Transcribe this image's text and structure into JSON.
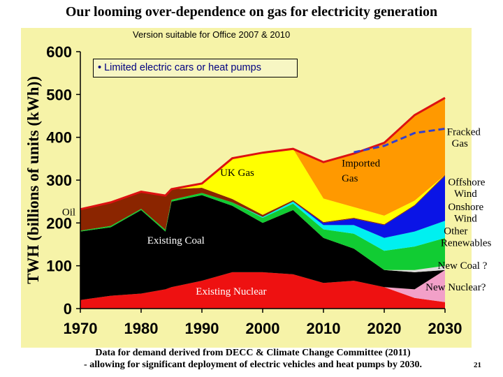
{
  "slide": {
    "title": "Our looming over-dependence on gas for electricity generation",
    "version": "Version suitable for Office 2007 & 2010",
    "note": "• Limited electric cars or heat pumps",
    "footer_line1": "Data for demand derived from DECC & Climate Change Committee (2011)",
    "footer_line2": "- allowing for significant deployment of electric vehicles and heat pumps by 2030.",
    "page_number": "21"
  },
  "chart_data": {
    "type": "area",
    "stacked": true,
    "ylabel": "TWH (billions of units (kWh))",
    "xlabel": "",
    "xlim": [
      1970,
      2030
    ],
    "ylim": [
      0,
      600
    ],
    "x_ticks": [
      1970,
      1980,
      1990,
      2000,
      2010,
      2020,
      2030
    ],
    "y_ticks": [
      0,
      100,
      200,
      300,
      400,
      500,
      600
    ],
    "x": [
      1970,
      1975,
      1980,
      1984,
      1985,
      1990,
      1995,
      2000,
      2005,
      2010,
      2015,
      2020,
      2025,
      2030
    ],
    "series": [
      {
        "name": "Existing Nuclear",
        "color": "#ee1111",
        "values": [
          20,
          30,
          35,
          45,
          50,
          65,
          85,
          85,
          80,
          60,
          65,
          50,
          25,
          15
        ]
      },
      {
        "name": "New Nuclear?",
        "color": "#f2a0c8",
        "values": [
          0,
          0,
          0,
          0,
          0,
          0,
          0,
          0,
          0,
          0,
          0,
          0,
          20,
          75
        ]
      },
      {
        "name": "Existing Coal",
        "color": "#000000",
        "values": [
          160,
          160,
          195,
          135,
          200,
          200,
          155,
          115,
          150,
          105,
          75,
          40,
          40,
          0
        ]
      },
      {
        "name": "New Coal ?",
        "color": "#dddddd",
        "values": [
          0,
          0,
          0,
          0,
          0,
          0,
          0,
          0,
          0,
          0,
          0,
          0,
          5,
          10
        ]
      },
      {
        "name": "Other Renewables",
        "color": "#11cc33",
        "values": [
          2,
          3,
          3,
          4,
          4,
          5,
          8,
          12,
          15,
          20,
          35,
          45,
          55,
          65
        ]
      },
      {
        "name": "Onshore Wind",
        "color": "#00f0f0",
        "values": [
          0,
          0,
          0,
          0,
          0,
          0,
          0,
          2,
          5,
          10,
          20,
          30,
          35,
          40
        ]
      },
      {
        "name": "Offshore Wind",
        "color": "#0a14e6",
        "values": [
          0,
          0,
          0,
          0,
          0,
          0,
          0,
          0,
          0,
          5,
          15,
          30,
          60,
          105
        ]
      },
      {
        "name": "Oil",
        "color": "#8b2500",
        "values": [
          50,
          55,
          40,
          80,
          25,
          12,
          8,
          5,
          3,
          2,
          2,
          2,
          2,
          2
        ]
      },
      {
        "name": "UK Gas",
        "color": "#ffff00",
        "values": [
          0,
          0,
          0,
          0,
          0,
          10,
          95,
          145,
          120,
          55,
          25,
          20,
          10,
          0
        ]
      },
      {
        "name": "Imported Gas",
        "color": "#ff9900",
        "values": [
          0,
          0,
          0,
          0,
          0,
          0,
          0,
          0,
          0,
          85,
          125,
          170,
          200,
          180
        ]
      }
    ],
    "dashed_series": {
      "name": "",
      "color": "#3040d0",
      "x": [
        2015,
        2020,
        2025,
        2030
      ],
      "values": [
        365,
        380,
        410,
        420
      ]
    },
    "annotations": [
      {
        "text": "Existing Nuclear",
        "x": 1989,
        "y": 33
      },
      {
        "text": "Existing Coal",
        "x": 1981,
        "y": 152
      },
      {
        "text": "Oil",
        "x": 1967,
        "y": 218
      },
      {
        "text": "UK Gas",
        "x": 1993,
        "y": 310
      },
      {
        "text": "Imported",
        "x": 2013,
        "y": 332
      },
      {
        "text": "Gas",
        "x": 2013,
        "y": 297
      },
      {
        "text": "Fracked",
        "x": 2030.3,
        "y": 405
      },
      {
        "text": "Gas",
        "x": 2031.1,
        "y": 378
      },
      {
        "text": "Offshore",
        "x": 2030.5,
        "y": 288
      },
      {
        "text": "Wind",
        "x": 2031.5,
        "y": 261
      },
      {
        "text": "Onshore",
        "x": 2030.5,
        "y": 230
      },
      {
        "text": "Wind",
        "x": 2031.5,
        "y": 203
      },
      {
        "text": "Other",
        "x": 2029.8,
        "y": 174
      },
      {
        "text": "Renewables",
        "x": 2029.3,
        "y": 146
      },
      {
        "text": "New Coal ?",
        "x": 2028.8,
        "y": 93
      },
      {
        "text": "New Nuclear?",
        "x": 2026.8,
        "y": 42
      }
    ]
  }
}
